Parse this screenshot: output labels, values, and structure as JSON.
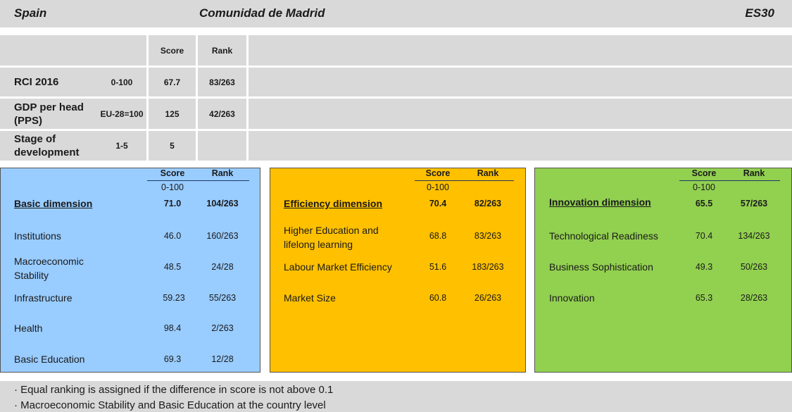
{
  "header": {
    "country": "Spain",
    "region": "Comunidad de Madrid",
    "code": "ES30"
  },
  "summary": {
    "col_score": "Score",
    "col_rank": "Rank",
    "rows": [
      {
        "label": "RCI 2016",
        "range": "0-100",
        "score": "67.7",
        "rank": "83/263"
      },
      {
        "label": "GDP per head (PPS)",
        "range": "EU-28=100",
        "score": "125",
        "rank": "42/263"
      },
      {
        "label": "Stage of development",
        "range": "1-5",
        "score": "5",
        "rank": ""
      }
    ]
  },
  "dimensions": [
    {
      "color": "#99ccff",
      "score_head": "Score",
      "rank_head": "Rank",
      "scale": "0-100",
      "title": "Basic dimension",
      "score": "71.0",
      "rank": "104/263",
      "items": [
        {
          "label": "Institutions",
          "score": "46.0",
          "rank": "160/263"
        },
        {
          "label": "Macroeconomic Stability",
          "score": "48.5",
          "rank": "24/28"
        },
        {
          "label": "Infrastructure",
          "score": "59.23",
          "rank": "55/263"
        },
        {
          "label": "Health",
          "score": "98.4",
          "rank": "2/263"
        },
        {
          "label": "Basic Education",
          "score": "69.3",
          "rank": "12/28"
        }
      ]
    },
    {
      "color": "#ffc000",
      "score_head": "Score",
      "rank_head": "Rank",
      "scale": "0-100",
      "title": "Efficiency dimension",
      "score": "70.4",
      "rank": "82/263",
      "items": [
        {
          "label": "Higher Education and lifelong learning",
          "score": "68.8",
          "rank": "83/263"
        },
        {
          "label": "Labour Market Efficiency",
          "score": "51.6",
          "rank": "183/263"
        },
        {
          "label": "Market Size",
          "score": "60.8",
          "rank": "26/263"
        }
      ]
    },
    {
      "color": "#92d050",
      "score_head": "Score",
      "rank_head": "Rank",
      "scale": "0-100",
      "title": "Innovation dimension",
      "score": "65.5",
      "rank": "57/263",
      "items": [
        {
          "label": "Technological Readiness",
          "score": "70.4",
          "rank": "134/263"
        },
        {
          "label": "Business Sophistication",
          "score": "49.3",
          "rank": "50/263"
        },
        {
          "label": "Innovation",
          "score": "65.3",
          "rank": "28/263"
        }
      ]
    }
  ],
  "notes": [
    "· Equal ranking is assigned if the difference in score is not above 0.1",
    "· Macroeconomic Stability and Basic Education at the country level"
  ]
}
